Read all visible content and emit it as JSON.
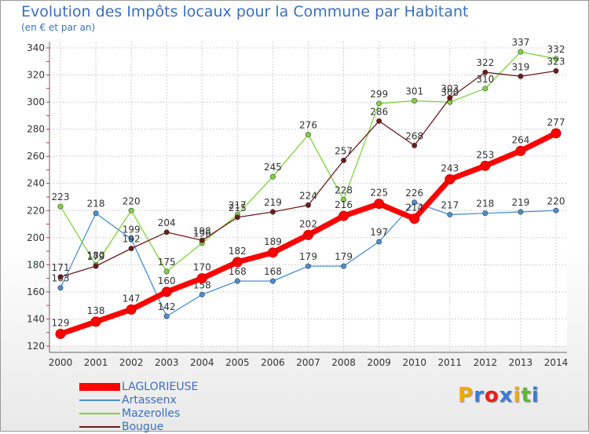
{
  "header": {
    "title": "Evolution des Impôts locaux pour la Commune par Habitant",
    "subtitle": "(en € et par an)"
  },
  "logo": {
    "text": "Proxiti"
  },
  "chart_data": {
    "type": "line",
    "title": "Evolution des Impôts locaux pour la Commune par Habitant",
    "subtitle": "(en € et par an)",
    "xlabel": "",
    "ylabel": "",
    "x": [
      2000,
      2001,
      2002,
      2003,
      2004,
      2005,
      2006,
      2007,
      2008,
      2009,
      2010,
      2011,
      2012,
      2013,
      2014
    ],
    "ylim": [
      120,
      340
    ],
    "yticks": [
      120,
      140,
      160,
      180,
      200,
      220,
      240,
      260,
      280,
      300,
      320,
      340
    ],
    "grid": true,
    "legend_position": "bottom-left",
    "series": [
      {
        "name": "LAGLORIEUSE",
        "color": "#ff0000",
        "highlight": true,
        "values": [
          129,
          138,
          147,
          160,
          170,
          182,
          189,
          202,
          216,
          225,
          214,
          243,
          253,
          264,
          277
        ]
      },
      {
        "name": "Artassenx",
        "color": "#4a8fd0",
        "highlight": false,
        "values": [
          163,
          218,
          199,
          142,
          158,
          168,
          168,
          179,
          179,
          197,
          226,
          217,
          218,
          219,
          220
        ]
      },
      {
        "name": "Mazerolles",
        "color": "#7fd33d",
        "highlight": false,
        "values": [
          223,
          180,
          220,
          175,
          196,
          217,
          245,
          276,
          228,
          299,
          301,
          300,
          310,
          337,
          332
        ]
      },
      {
        "name": "Bougue",
        "color": "#6b1a1a",
        "highlight": false,
        "values": [
          171,
          179,
          192,
          204,
          198,
          215,
          219,
          224,
          257,
          286,
          268,
          303,
          322,
          319,
          323
        ]
      }
    ]
  }
}
